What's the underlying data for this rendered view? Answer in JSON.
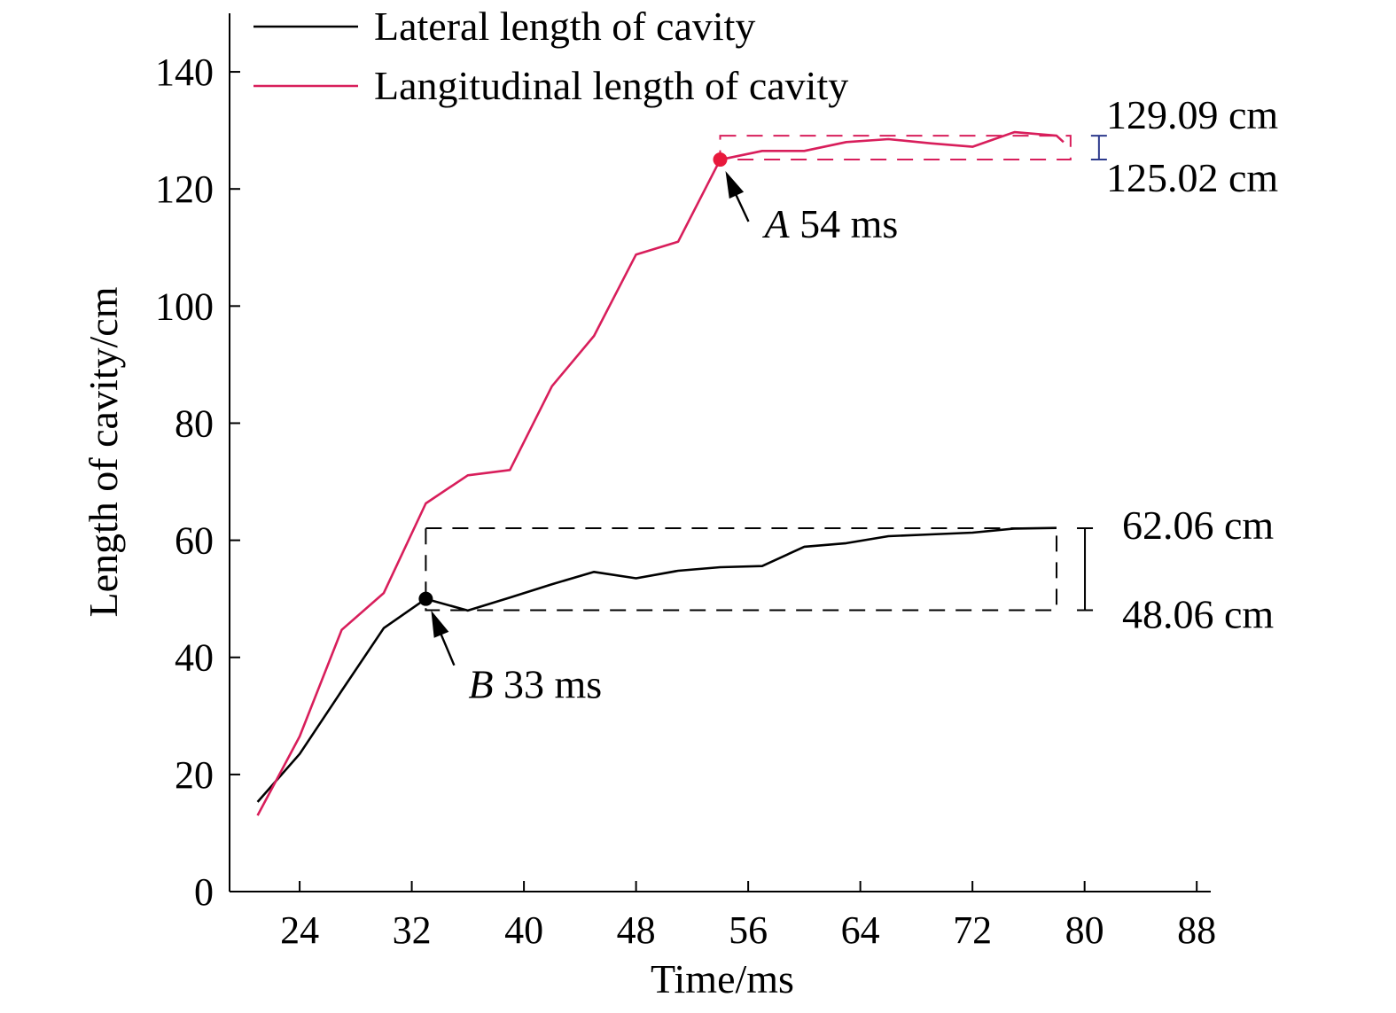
{
  "chart_data": {
    "type": "line",
    "title": "",
    "xlabel": "Time/ms",
    "ylabel": "Length of cavity/cm",
    "xlim": [
      19,
      89
    ],
    "ylim": [
      0,
      150
    ],
    "xticks": [
      24,
      32,
      40,
      48,
      56,
      64,
      72,
      80,
      88
    ],
    "yticks": [
      0,
      20,
      40,
      60,
      80,
      100,
      120,
      140
    ],
    "grid": false,
    "legend_position": "top-left",
    "series": [
      {
        "name": "Lateral length of cavity",
        "color": "#000000",
        "x": [
          21,
          24,
          27,
          30,
          33,
          36,
          39,
          42,
          45,
          48,
          51,
          54,
          57,
          60,
          63,
          66,
          69,
          72,
          75,
          78
        ],
        "y": [
          15.3,
          23.5,
          34.3,
          45.0,
          50.0,
          48.0,
          50.2,
          52.5,
          54.6,
          53.5,
          54.8,
          55.4,
          55.6,
          58.9,
          59.5,
          60.7,
          61.0,
          61.3,
          62.0,
          62.1
        ]
      },
      {
        "name": "Langitudinal length of cavity",
        "color": "#d81e5b",
        "x": [
          21,
          24,
          27,
          30,
          33,
          36,
          39,
          42,
          45,
          48,
          51,
          54,
          57,
          60,
          63,
          66,
          69,
          72,
          75,
          78,
          78.5
        ],
        "y": [
          13.0,
          26.5,
          44.7,
          51.0,
          66.3,
          71.1,
          72.0,
          86.3,
          94.9,
          108.8,
          111.0,
          125.0,
          126.5,
          126.5,
          128.0,
          128.5,
          127.8,
          127.2,
          129.7,
          129.1,
          128.0
        ]
      }
    ],
    "annotations": [
      {
        "label_var": "A",
        "label_text": "54 ms",
        "x": 54,
        "y": 125.02,
        "color": "#e8193c"
      },
      {
        "label_var": "B",
        "label_text": "33 ms",
        "x": 33,
        "y": 50.0,
        "color": "#000000"
      },
      {
        "text": "129.09 cm",
        "value": 129.09
      },
      {
        "text": "125.02 cm",
        "value": 125.02
      },
      {
        "text": "62.06 cm",
        "value": 62.06
      },
      {
        "text": "48.06 cm",
        "value": 48.06
      }
    ],
    "ranges": [
      {
        "x_start": 54,
        "x_end": 79,
        "y_low": 125.02,
        "y_high": 129.09,
        "color": "#d81e5b",
        "bracket_color": "#2d3a8c"
      },
      {
        "x_start": 33,
        "x_end": 78,
        "y_low": 48.06,
        "y_high": 62.06,
        "color": "#000000",
        "bracket_color": "#000000"
      }
    ]
  }
}
